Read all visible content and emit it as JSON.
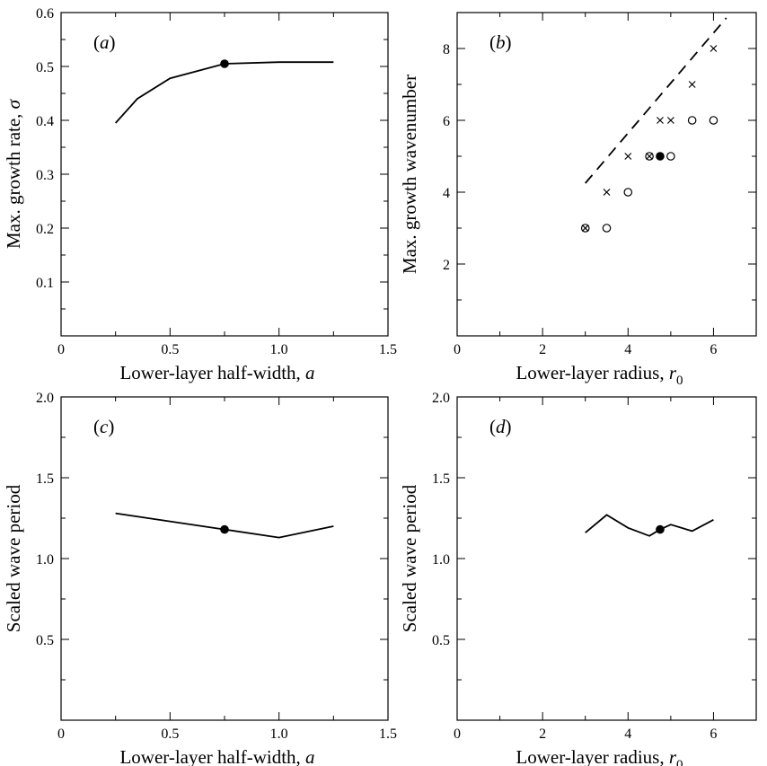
{
  "chart_data": [
    {
      "panel": "(a)",
      "type": "line",
      "xlabel": "Lower-layer half-width, a",
      "ylabel": "Max. growth rate, σ",
      "xlim": [
        0,
        1.5
      ],
      "ylim": [
        0,
        0.6
      ],
      "xticks": [
        0,
        0.5,
        1.0,
        1.5
      ],
      "xtick_labels": [
        "0",
        "0.5",
        "1.0",
        "1.5"
      ],
      "yticks": [
        0.1,
        0.2,
        0.3,
        0.4,
        0.5,
        0.6
      ],
      "ytick_labels": [
        "0.1",
        "0.2",
        "0.3",
        "0.4",
        "0.5",
        "0.6"
      ],
      "series": [
        {
          "x": [
            0.25,
            0.35,
            0.5,
            0.75,
            1.0,
            1.25
          ],
          "y": [
            0.395,
            0.44,
            0.478,
            0.505,
            0.508,
            0.508
          ]
        }
      ],
      "highlight": {
        "x": 0.75,
        "y": 0.505
      }
    },
    {
      "panel": "(b)",
      "type": "scatter",
      "xlabel": "Lower-layer radius, r0",
      "ylabel": "Max. growth wavenumber",
      "xlim": [
        0,
        7
      ],
      "ylim": [
        0,
        9
      ],
      "xticks": [
        0,
        2,
        4,
        6
      ],
      "xtick_labels": [
        "0",
        "2",
        "4",
        "6"
      ],
      "yticks": [
        2,
        4,
        6,
        8
      ],
      "ytick_labels": [
        "2",
        "4",
        "6",
        "8"
      ],
      "crosses": [
        {
          "x": 3.0,
          "y": 3
        },
        {
          "x": 3.5,
          "y": 4
        },
        {
          "x": 4.0,
          "y": 5
        },
        {
          "x": 4.5,
          "y": 5
        },
        {
          "x": 4.75,
          "y": 6
        },
        {
          "x": 5.0,
          "y": 6
        },
        {
          "x": 5.5,
          "y": 7
        },
        {
          "x": 6.0,
          "y": 8
        }
      ],
      "circles": [
        {
          "x": 3.0,
          "y": 3
        },
        {
          "x": 3.5,
          "y": 3
        },
        {
          "x": 4.0,
          "y": 4
        },
        {
          "x": 4.5,
          "y": 5
        },
        {
          "x": 5.0,
          "y": 5
        },
        {
          "x": 5.5,
          "y": 6
        },
        {
          "x": 6.0,
          "y": 6
        }
      ],
      "dashed_line": {
        "x": [
          3.0,
          6.3
        ],
        "y": [
          4.25,
          8.85
        ]
      },
      "highlight": {
        "x": 4.75,
        "y": 5
      }
    },
    {
      "panel": "(c)",
      "type": "line",
      "xlabel": "Lower-layer half-width, a",
      "ylabel": "Scaled wave period",
      "xlim": [
        0,
        1.5
      ],
      "ylim": [
        0,
        2.0
      ],
      "xticks": [
        0,
        0.5,
        1.0,
        1.5
      ],
      "xtick_labels": [
        "0",
        "0.5",
        "1.0",
        "1.5"
      ],
      "yticks": [
        0.5,
        1.0,
        1.5,
        2.0
      ],
      "ytick_labels": [
        "0.5",
        "1.0",
        "1.5",
        "2.0"
      ],
      "series": [
        {
          "x": [
            0.25,
            0.5,
            0.75,
            1.0,
            1.25
          ],
          "y": [
            1.28,
            1.23,
            1.18,
            1.13,
            1.2
          ]
        }
      ],
      "highlight": {
        "x": 0.75,
        "y": 1.18
      }
    },
    {
      "panel": "(d)",
      "type": "line",
      "xlabel": "Lower-layer radius, r0",
      "ylabel": "Scaled wave period",
      "xlim": [
        0,
        7
      ],
      "ylim": [
        0,
        2.0
      ],
      "xticks": [
        0,
        2,
        4,
        6
      ],
      "xtick_labels": [
        "0",
        "2",
        "4",
        "6"
      ],
      "yticks": [
        0.5,
        1.0,
        1.5,
        2.0
      ],
      "ytick_labels": [
        "0.5",
        "1.0",
        "1.5",
        "2.0"
      ],
      "series": [
        {
          "x": [
            3.0,
            3.5,
            4.0,
            4.5,
            4.75,
            5.0,
            5.5,
            6.0
          ],
          "y": [
            1.16,
            1.27,
            1.19,
            1.14,
            1.18,
            1.21,
            1.17,
            1.24
          ]
        }
      ],
      "highlight": {
        "x": 4.75,
        "y": 1.18
      }
    }
  ]
}
